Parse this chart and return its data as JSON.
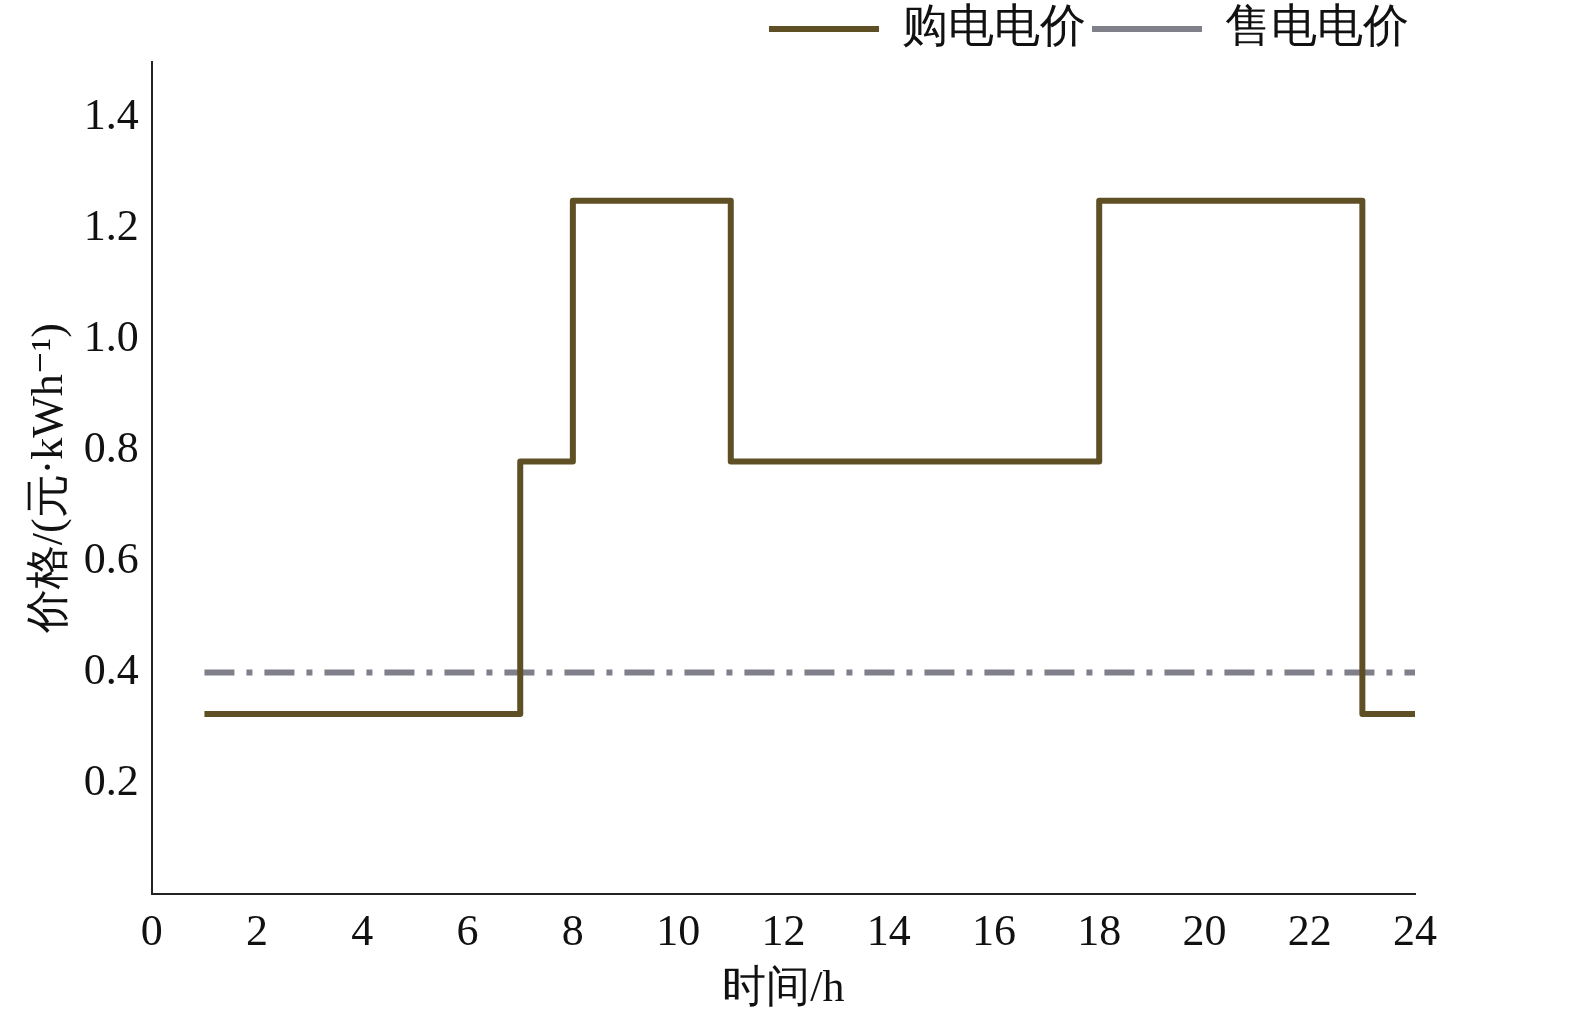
{
  "chart_data": {
    "type": "step",
    "xlabel": "时间/h",
    "ylabel": "价格/(元·kWh⁻¹)",
    "xlim": [
      0,
      24
    ],
    "xticks": [
      0,
      2,
      4,
      6,
      8,
      10,
      12,
      14,
      16,
      18,
      20,
      22,
      24
    ],
    "ylim": [
      0,
      1.5
    ],
    "yticks": [
      {
        "value": 0.2,
        "label": "0.2"
      },
      {
        "value": 0.4,
        "label": "0.4"
      },
      {
        "value": 0.6,
        "label": "0.6"
      },
      {
        "value": 0.8,
        "label": "0.8"
      },
      {
        "value": 1,
        "label": "1.0"
      },
      {
        "value": 1.2,
        "label": "1.2"
      },
      {
        "value": 1.4,
        "label": "1.4"
      }
    ],
    "grid": false,
    "legend": "top right",
    "series": [
      {
        "name": "购电电价",
        "color": "#5e5024",
        "line_style": "solid",
        "x": [
          1,
          7,
          8,
          11,
          18,
          23,
          24
        ],
        "values": [
          0.325,
          0.78,
          1.25,
          0.78,
          1.25,
          0.325,
          0.325
        ]
      },
      {
        "name": "售电电价",
        "type": "line",
        "color": "#7f8089",
        "line_style": "dashdot",
        "x": [
          1,
          24
        ],
        "values": [
          0.4,
          0.4
        ]
      }
    ]
  }
}
